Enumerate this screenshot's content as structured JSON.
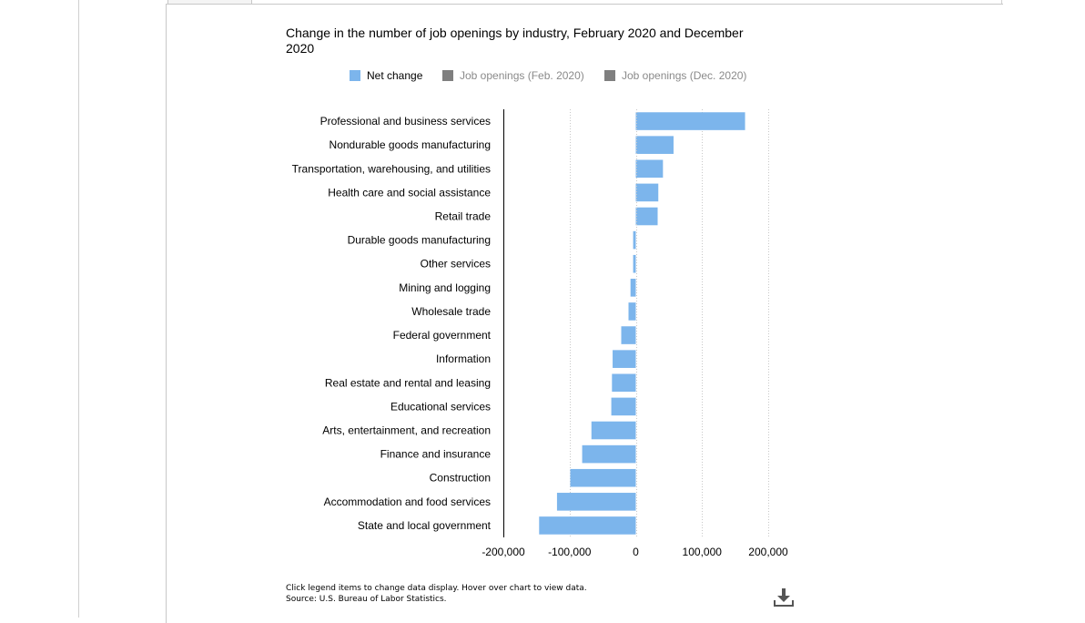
{
  "chart_data": {
    "type": "bar",
    "orientation": "horizontal",
    "title": "Change in the number of job openings by industry, February 2020 and December 2020",
    "categories": [
      "Professional and business services",
      "Nondurable goods manufacturing",
      "Transportation, warehousing, and utilities",
      "Health care and social assistance",
      "Retail trade",
      "Durable goods manufacturing",
      "Other services",
      "Mining and logging",
      "Wholesale trade",
      "Federal government",
      "Information",
      "Real estate and rental and leasing",
      "Educational services",
      "Arts, entertainment, and recreation",
      "Finance and insurance",
      "Construction",
      "Accommodation and food services",
      "State and local government"
    ],
    "series": [
      {
        "name": "Net change",
        "color": "#7cb5ec",
        "values": [
          165000,
          57000,
          41000,
          34000,
          33000,
          -4000,
          -4000,
          -8000,
          -11000,
          -22000,
          -35000,
          -36000,
          -37000,
          -67000,
          -81000,
          -99000,
          -119000,
          -146000
        ]
      }
    ],
    "xlim": [
      -200000,
      200000
    ],
    "xticks": [
      -200000,
      -100000,
      0,
      100000,
      200000
    ],
    "xtick_labels": [
      "-200,000",
      "-100,000",
      "0",
      "100,000",
      "200,000"
    ],
    "grid": true
  },
  "legend": [
    {
      "label": "Net change",
      "color": "#7cb5ec",
      "active": true
    },
    {
      "label": "Job openings (Feb. 2020)",
      "color": "#7f7f7f",
      "active": false
    },
    {
      "label": "Job openings (Dec. 2020)",
      "color": "#7f7f7f",
      "active": false
    }
  ],
  "footnote": {
    "line1": "Click legend items to change data display. Hover over chart to view data.",
    "line2": "Source: U.S. Bureau of Labor Statistics."
  },
  "icons": {
    "download": "download-icon"
  }
}
